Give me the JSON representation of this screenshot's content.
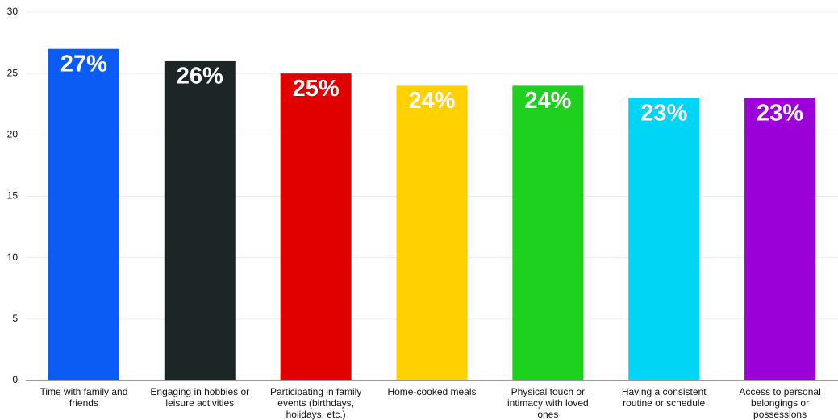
{
  "chart_data": {
    "type": "bar",
    "categories": [
      "Time with family and friends",
      "Engaging in hobbies or leisure activities",
      "Participating in family events (birthdays, holidays, etc.)",
      "Home-cooked meals",
      "Physical touch or intimacy with loved ones",
      "Having a consistent routine or schedule",
      "Access to personal belongings or possessions"
    ],
    "values": [
      27,
      26,
      25,
      24,
      24,
      23,
      23
    ],
    "value_labels": [
      "27%",
      "26%",
      "25%",
      "24%",
      "24%",
      "23%",
      "23%"
    ],
    "colors": [
      "#0a5cf5",
      "#1c2626",
      "#e00000",
      "#ffd100",
      "#1fd11f",
      "#00d5f5",
      "#9b00d9"
    ],
    "ylim": [
      0,
      30
    ],
    "yticks": [
      0,
      5,
      10,
      15,
      20,
      25,
      30
    ],
    "grid": true
  }
}
